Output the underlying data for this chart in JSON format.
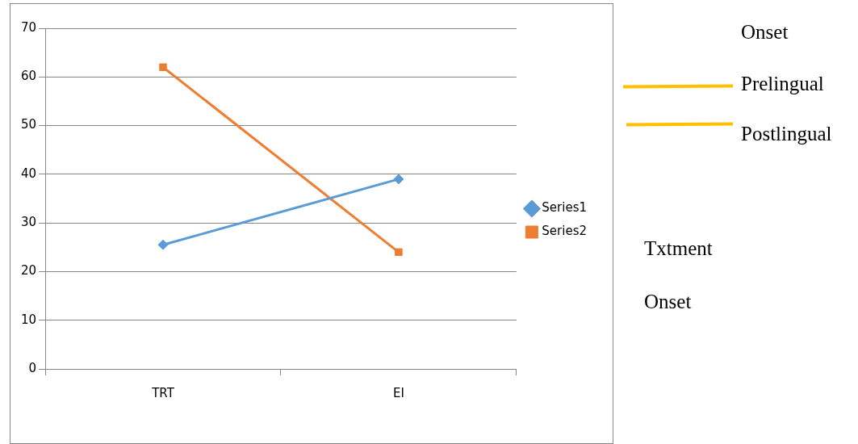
{
  "chart_data": {
    "type": "line",
    "categories": [
      "TRT",
      "EI"
    ],
    "series": [
      {
        "name": "Series1",
        "color": "#5b9bd5",
        "values": [
          25.5,
          39
        ],
        "marker": "diamond"
      },
      {
        "name": "Series2",
        "color": "#ed7d31",
        "values": [
          62,
          24
        ],
        "marker": "square"
      }
    ],
    "ylim": [
      0,
      70
    ],
    "yticks": [
      0,
      10,
      20,
      30,
      40,
      50,
      60,
      70
    ],
    "grid": "y",
    "legend": "right",
    "line_style": "solid",
    "annotations": [
      "Onset",
      "Prelingual",
      "Postlingual",
      "Txtment",
      "Onset"
    ]
  }
}
